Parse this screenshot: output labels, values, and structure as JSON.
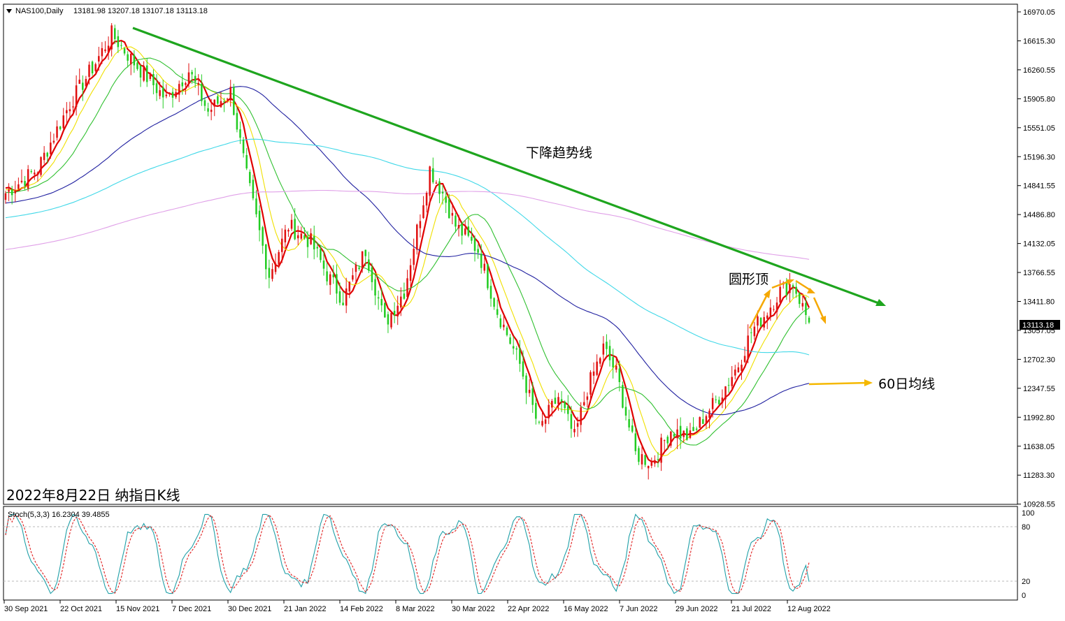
{
  "header": {
    "symbol_label": "NAS100,Daily",
    "ohlc_label": "13181.98 13207.18 13107.18 13113.18"
  },
  "chart_data": {
    "type": "candlestick",
    "symbol": "NAS100",
    "timeframe": "Daily",
    "ohlc": [
      13181.98,
      13207.18,
      13107.18,
      13113.18
    ],
    "last_price_label": "13113.18",
    "y_ticks": [
      "16970.05",
      "16615.30",
      "16260.55",
      "15905.80",
      "15551.05",
      "15196.30",
      "14841.55",
      "14486.80",
      "14132.05",
      "13766.55",
      "13411.80",
      "13057.05",
      "12702.30",
      "12347.55",
      "11992.80",
      "11638.05",
      "11283.30",
      "10928.55"
    ],
    "y_range": [
      10900,
      17000
    ],
    "x_ticks": [
      "30 Sep 2021",
      "22 Oct 2021",
      "15 Nov 2021",
      "7 Dec 2021",
      "30 Dec 2021",
      "21 Jan 2022",
      "14 Feb 2022",
      "8 Mar 2022",
      "30 Mar 2022",
      "22 Apr 2022",
      "16 May 2022",
      "7 Jun 2022",
      "29 Jun 2022",
      "21 Jul 2022",
      "12 Aug 2022"
    ],
    "close_keypoints": [
      [
        0,
        14700
      ],
      [
        10,
        15000
      ],
      [
        20,
        15800
      ],
      [
        28,
        16300
      ],
      [
        33,
        16650
      ],
      [
        40,
        16300
      ],
      [
        50,
        15850
      ],
      [
        57,
        16200
      ],
      [
        63,
        15700
      ],
      [
        70,
        15950
      ],
      [
        75,
        14900
      ],
      [
        82,
        13700
      ],
      [
        88,
        14300
      ],
      [
        95,
        14100
      ],
      [
        100,
        13700
      ],
      [
        105,
        13400
      ],
      [
        112,
        14000
      ],
      [
        118,
        13100
      ],
      [
        124,
        13500
      ],
      [
        132,
        15000
      ],
      [
        136,
        14700
      ],
      [
        140,
        14300
      ],
      [
        147,
        14000
      ],
      [
        153,
        13250
      ],
      [
        160,
        12600
      ],
      [
        166,
        11800
      ],
      [
        172,
        12200
      ],
      [
        177,
        11700
      ],
      [
        181,
        12300
      ],
      [
        186,
        12800
      ],
      [
        190,
        12500
      ],
      [
        196,
        11500
      ],
      [
        201,
        11400
      ],
      [
        207,
        11800
      ],
      [
        213,
        11700
      ],
      [
        218,
        12000
      ],
      [
        222,
        12200
      ],
      [
        228,
        12600
      ],
      [
        232,
        13000
      ],
      [
        236,
        13200
      ],
      [
        241,
        13500
      ],
      [
        245,
        13600
      ],
      [
        248,
        13300
      ],
      [
        250,
        13113
      ]
    ],
    "moving_averages": [
      {
        "period": 5,
        "color": "#e00000"
      },
      {
        "period": 10,
        "color": "#f0e000"
      },
      {
        "period": 20,
        "color": "#30c030"
      },
      {
        "period": 60,
        "color": "#2020a0"
      },
      {
        "period": 120,
        "color": "#40d8e8"
      },
      {
        "period": 250,
        "color": "#e0a0e8"
      }
    ],
    "annotations": {
      "trendline_label": "下降趋势线",
      "top_label": "圆形顶",
      "ma60_label": "60日均线",
      "caption": "2022年8月22日 纳指日K线"
    },
    "stochastic": {
      "label": "Stoch(5,3,3) 16.2304 39.4855",
      "k": 16.2304,
      "d": 39.4855,
      "levels": [
        "100",
        "80",
        "20",
        "0"
      ]
    }
  }
}
